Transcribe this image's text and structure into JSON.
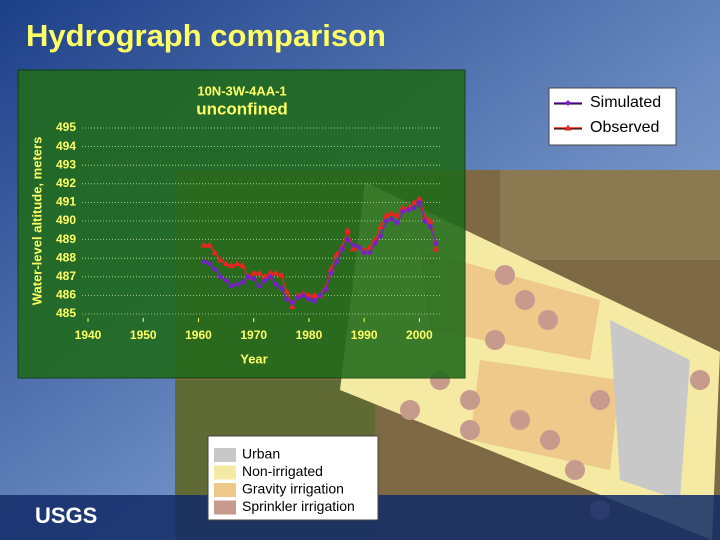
{
  "slide_title": "Hydrograph comparison",
  "logo": "USGS",
  "map_legend": [
    {
      "label": "Urban",
      "color": "#c8c8c8"
    },
    {
      "label": "Non-irrigated",
      "color": "#f5eaa3"
    },
    {
      "label": "Gravity irrigation",
      "color": "#eec98a"
    },
    {
      "label": "Sprinkler irrigation",
      "color": "#c79a8e"
    }
  ],
  "chart_data": {
    "type": "line",
    "title": "10N-3W-4AA-1",
    "subtitle": "unconfined",
    "x_label": "Year",
    "y_label": "Water-level altitude, meters",
    "xlim": [
      1935,
      2005
    ],
    "xticks": [
      1940,
      1950,
      1960,
      1970,
      1980,
      1990,
      2000
    ],
    "ylim": [
      485,
      495
    ],
    "yticks": [
      485,
      486,
      487,
      488,
      489,
      490,
      491,
      492,
      493,
      494,
      495
    ],
    "grid": true,
    "legend": "upper right",
    "x": [
      1961,
      1962,
      1963,
      1964,
      1965,
      1966,
      1967,
      1968,
      1969,
      1970,
      1971,
      1972,
      1973,
      1974,
      1975,
      1976,
      1977,
      1978,
      1979,
      1980,
      1981,
      1982,
      1983,
      1984,
      1985,
      1986,
      1987,
      1988,
      1989,
      1990,
      1991,
      1992,
      1993,
      1994,
      1995,
      1996,
      1997,
      1998,
      1999,
      2000,
      2001,
      2002,
      2003
    ],
    "series": [
      {
        "name": "Simulated",
        "color": "#7a1fd0",
        "marker": "diamond",
        "values": [
          487.8,
          487.7,
          487.4,
          487.0,
          486.8,
          486.5,
          486.6,
          486.7,
          487.0,
          486.9,
          486.5,
          486.8,
          487.0,
          486.6,
          486.4,
          485.8,
          485.6,
          485.9,
          486.0,
          485.8,
          485.7,
          486.0,
          486.3,
          487.2,
          487.8,
          488.5,
          489.0,
          488.7,
          488.6,
          488.3,
          488.3,
          488.8,
          489.2,
          490.0,
          490.1,
          489.9,
          490.5,
          490.6,
          490.7,
          491.0,
          490.0,
          489.7,
          488.8
        ]
      },
      {
        "name": "Observed",
        "color": "#e8251f",
        "marker": "triangle",
        "values": [
          488.7,
          488.7,
          488.3,
          487.9,
          487.7,
          487.6,
          487.7,
          487.6,
          487.0,
          487.2,
          487.2,
          487.0,
          487.2,
          487.2,
          487.1,
          486.2,
          485.4,
          486.0,
          486.1,
          486.0,
          486.0,
          486.0,
          486.4,
          487.4,
          488.2,
          488.6,
          489.5,
          488.5,
          488.6,
          488.4,
          488.6,
          489.0,
          489.7,
          490.3,
          490.4,
          490.3,
          490.7,
          490.7,
          491.0,
          491.2,
          490.2,
          490.0,
          488.5
        ]
      }
    ]
  }
}
